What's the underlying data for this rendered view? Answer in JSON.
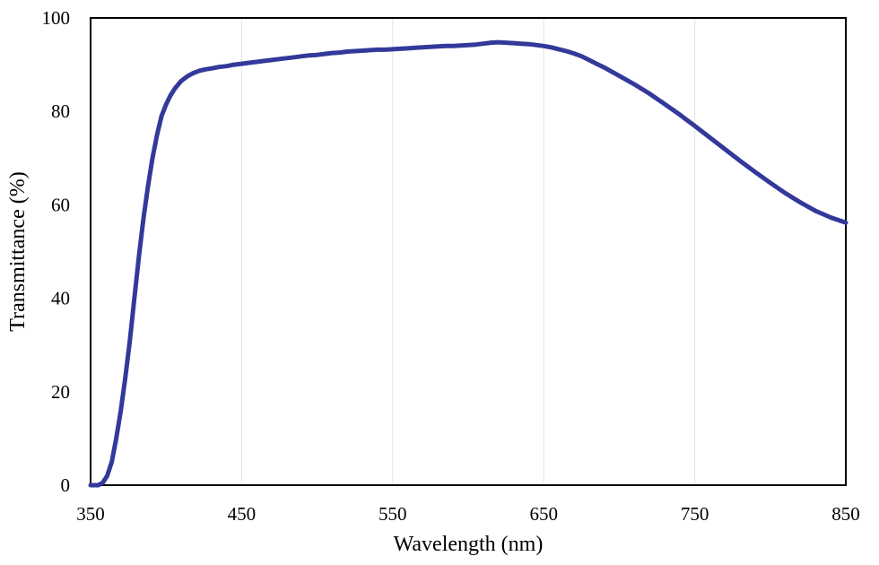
{
  "chart_data": {
    "type": "line",
    "title": "",
    "xlabel": "Wavelength  (nm)",
    "ylabel": "Transmittance  (%)",
    "xlim": [
      350,
      850
    ],
    "ylim": [
      0,
      100
    ],
    "xticks": [
      350,
      450,
      550,
      650,
      750,
      850
    ],
    "xtick_labels": [
      "350",
      "450",
      "550",
      "650",
      "750",
      "850"
    ],
    "yticks": [
      0,
      20,
      40,
      60,
      80,
      100
    ],
    "ytick_labels": [
      "0",
      "20",
      "40",
      "60",
      "80",
      "100"
    ],
    "grid": "vertical",
    "legend": "none",
    "series": [
      {
        "color": "#33399a",
        "x": [
          350,
          355,
          358,
          361,
          364,
          367,
          370,
          373,
          376,
          379,
          382,
          385,
          388,
          391,
          394,
          397,
          400,
          403,
          406,
          410,
          414,
          418,
          422,
          426,
          430,
          435,
          440,
          445,
          450,
          455,
          460,
          465,
          470,
          475,
          480,
          485,
          490,
          495,
          500,
          505,
          510,
          515,
          520,
          525,
          530,
          535,
          540,
          545,
          550,
          555,
          560,
          565,
          570,
          575,
          580,
          585,
          590,
          595,
          600,
          605,
          610,
          615,
          620,
          625,
          630,
          635,
          640,
          645,
          650,
          655,
          660,
          665,
          670,
          675,
          680,
          685,
          690,
          695,
          700,
          705,
          710,
          720,
          730,
          740,
          750,
          760,
          770,
          780,
          790,
          800,
          810,
          820,
          830,
          840,
          850
        ],
        "y": [
          0,
          0,
          0.5,
          2,
          5,
          10,
          16,
          23,
          31,
          40,
          49,
          57,
          64,
          70,
          75,
          79,
          81.5,
          83.5,
          85,
          86.5,
          87.5,
          88.2,
          88.7,
          89,
          89.2,
          89.5,
          89.7,
          90,
          90.2,
          90.4,
          90.6,
          90.8,
          91,
          91.2,
          91.4,
          91.6,
          91.8,
          92,
          92.1,
          92.3,
          92.5,
          92.6,
          92.8,
          92.9,
          93,
          93.1,
          93.2,
          93.2,
          93.3,
          93.4,
          93.5,
          93.6,
          93.7,
          93.8,
          93.9,
          94,
          94,
          94.1,
          94.2,
          94.3,
          94.5,
          94.7,
          94.8,
          94.7,
          94.6,
          94.5,
          94.4,
          94.2,
          94,
          93.7,
          93.3,
          92.9,
          92.4,
          91.8,
          91,
          90.2,
          89.4,
          88.5,
          87.6,
          86.7,
          85.8,
          83.8,
          81.6,
          79.3,
          76.9,
          74.4,
          71.9,
          69.4,
          67,
          64.7,
          62.5,
          60.5,
          58.7,
          57.3,
          56.2
        ]
      }
    ]
  }
}
